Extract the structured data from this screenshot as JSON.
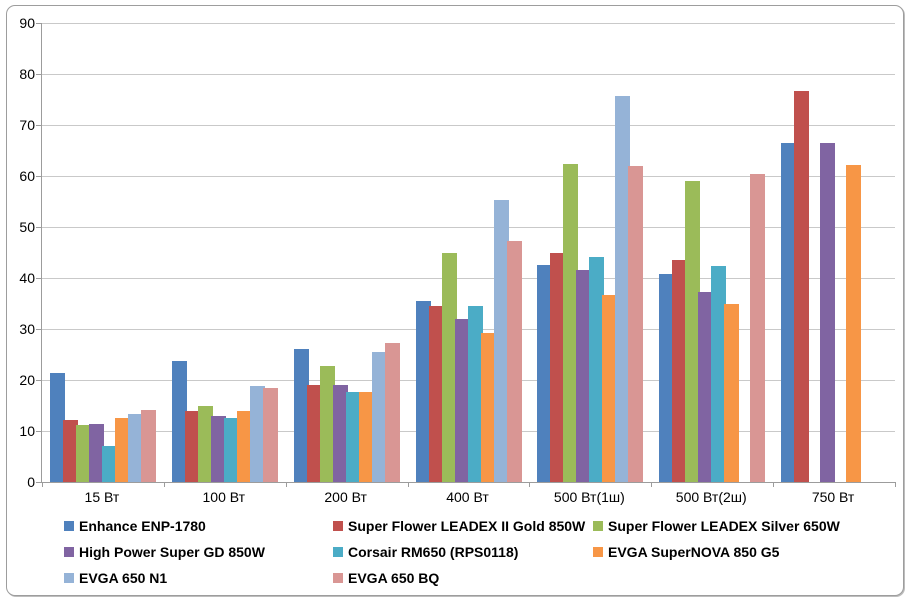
{
  "frame": {
    "background": "#ffffff",
    "border_color": "#9d9d9d"
  },
  "chart_data": {
    "type": "bar",
    "title": "",
    "xlabel": "",
    "ylabel": "",
    "categories": [
      "15 Вт",
      "100 Вт",
      "200 Вт",
      "400 Вт",
      "500 Вт(1ш)",
      "500 Вт(2ш)",
      "750 Вт"
    ],
    "series": [
      {
        "name": "Enhance ENP-1780",
        "color": "#4F81BD",
        "values": [
          21.3,
          23.7,
          26.1,
          35.4,
          42.6,
          40.8,
          66.5
        ]
      },
      {
        "name": "Super Flower LEADEX II Gold 850W",
        "color": "#C0504D",
        "values": [
          12.2,
          14.0,
          19.0,
          34.5,
          45.0,
          43.6,
          76.6
        ]
      },
      {
        "name": "Super Flower LEADEX Silver 650W",
        "color": "#9BBB59",
        "values": [
          11.2,
          15.0,
          22.7,
          45.0,
          62.4,
          59.1,
          null
        ]
      },
      {
        "name": "High Power Super GD 850W",
        "color": "#8064A2",
        "values": [
          11.4,
          13.0,
          19.0,
          31.9,
          41.6,
          37.2,
          66.5
        ]
      },
      {
        "name": "Corsair RM650 (RPS0118)",
        "color": "#4BACC6",
        "values": [
          7.0,
          12.5,
          17.6,
          34.5,
          44.2,
          42.4,
          null
        ]
      },
      {
        "name": "EVGA SuperNOVA 850 G5",
        "color": "#F79646",
        "values": [
          12.5,
          14.0,
          17.7,
          29.2,
          36.6,
          34.9,
          62.2
        ]
      },
      {
        "name": "EVGA 650 N1",
        "color": "#95B3D7",
        "values": [
          13.4,
          18.9,
          25.5,
          55.3,
          75.6,
          null,
          null
        ]
      },
      {
        "name": "EVGA 650 BQ",
        "color": "#D99694",
        "values": [
          14.2,
          18.5,
          27.3,
          47.3,
          61.9,
          60.4,
          null
        ]
      }
    ],
    "ylim": [
      0,
      90
    ],
    "yticks": [
      0,
      10,
      20,
      30,
      40,
      50,
      60,
      70,
      80,
      90
    ],
    "grid": true,
    "gridline_color": "#c9c9c9",
    "axis_color": "#9c9c9c",
    "legend_position": "bottom"
  }
}
